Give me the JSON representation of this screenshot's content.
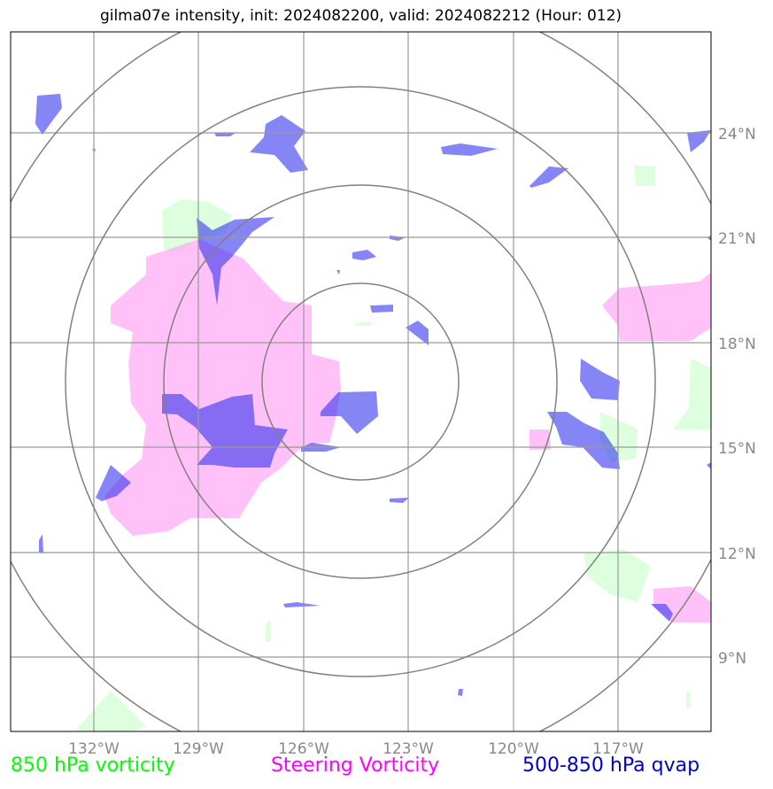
{
  "title": "gilma07e intensity, init: 2024082200, valid: 2024082212 (Hour: 012)",
  "map": {
    "lon_ticks": [
      "132°W",
      "129°W",
      "126°W",
      "123°W",
      "120°W",
      "117°W"
    ],
    "lat_ticks": [
      "24°N",
      "21°N",
      "18°N",
      "15°N",
      "12°N",
      "9°N"
    ],
    "range_rings": 4
  },
  "legend": {
    "vort850": {
      "label": "850 hPa vorticity",
      "color": "#00ff00"
    },
    "steering": {
      "label": "Steering Vorticity",
      "color": "#ff00ff"
    },
    "qvap": {
      "label": "500-850 hPa qvap",
      "color": "#0000cc"
    }
  }
}
